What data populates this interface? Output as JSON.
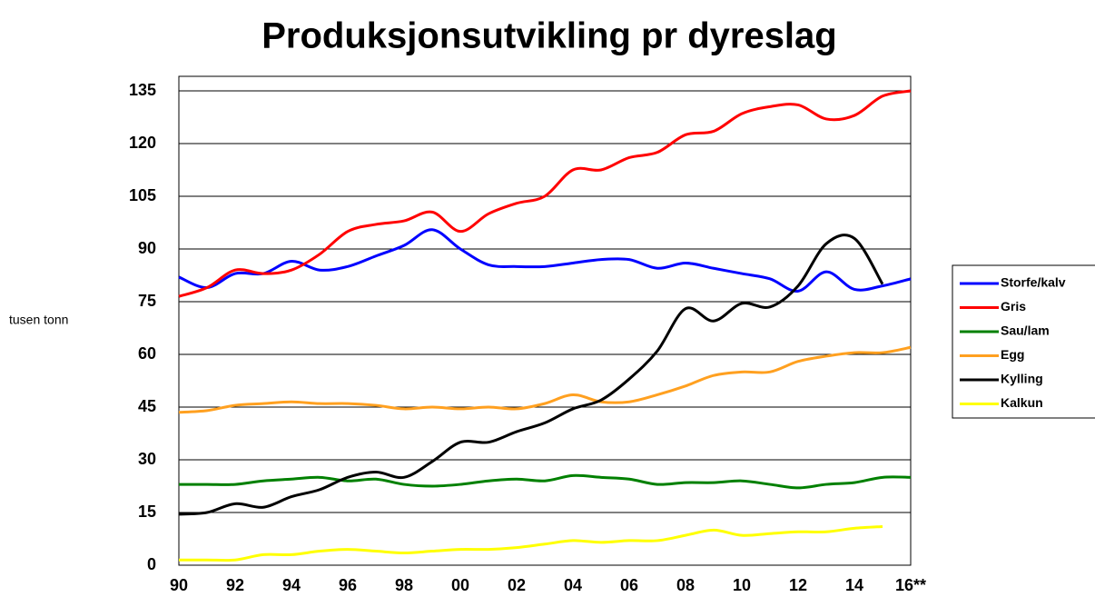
{
  "chart_data": {
    "type": "line",
    "title": "Produksjonsutvikling pr dyreslag",
    "y_label": "tusen tonn",
    "categories": [
      "90",
      null,
      "92",
      null,
      "94",
      null,
      "96",
      null,
      "98",
      null,
      "00",
      null,
      "02",
      null,
      "04",
      null,
      "06",
      null,
      "08",
      null,
      "10",
      null,
      "12",
      null,
      "14",
      null,
      "16**"
    ],
    "ylim": [
      0,
      135
    ],
    "yticks": [
      0,
      15,
      30,
      45,
      60,
      75,
      90,
      105,
      120,
      135
    ],
    "grid": true,
    "legend": "right",
    "series": [
      {
        "name": "Storfe/kalv",
        "color": "#0000ff",
        "values": [
          82,
          79,
          83,
          83,
          86.5,
          84,
          85,
          88,
          91,
          95.5,
          90,
          85.5,
          85,
          85,
          86,
          87,
          87,
          84.5,
          86,
          84.5,
          83,
          81.5,
          78,
          83.5,
          78.5,
          79.5,
          81.5
        ]
      },
      {
        "name": "Gris",
        "color": "#ff0000",
        "values": [
          76.5,
          79,
          84,
          83,
          84,
          88.5,
          95,
          97,
          98,
          100.5,
          95,
          100,
          103,
          105,
          112.5,
          112.5,
          116,
          117.5,
          122.5,
          123.5,
          128.5,
          130.5,
          131,
          127,
          128,
          133.5,
          135
        ]
      },
      {
        "name": "Sau/lam",
        "color": "#008000",
        "values": [
          23,
          23,
          23,
          24,
          24.5,
          25,
          24,
          24.5,
          23,
          22.5,
          23,
          24,
          24.5,
          24,
          25.5,
          25,
          24.5,
          23,
          23.5,
          23.5,
          24,
          23,
          22,
          23,
          23.5,
          25,
          25
        ]
      },
      {
        "name": "Egg",
        "color": "#ffa020",
        "values": [
          43.5,
          44,
          45.5,
          46,
          46.5,
          46,
          46,
          45.5,
          44.5,
          45,
          44.5,
          45,
          44.5,
          46,
          48.5,
          46.5,
          46.5,
          48.5,
          51,
          54,
          55,
          55,
          58,
          59.5,
          60.5,
          60.5,
          62
        ]
      },
      {
        "name": "Kylling",
        "color": "#000000",
        "values": [
          14.5,
          15,
          17.5,
          16.5,
          19.5,
          21.5,
          25,
          26.5,
          25,
          29.5,
          35,
          35,
          38,
          40.5,
          44.5,
          47,
          53,
          61,
          73,
          69.5,
          74.5,
          73.5,
          79.5,
          91.5,
          93,
          80,
          null
        ]
      },
      {
        "name": "Kalkun",
        "color": "#ffff00",
        "values": [
          1.5,
          1.5,
          1.5,
          3,
          3,
          4,
          4.5,
          4,
          3.5,
          4,
          4.5,
          4.5,
          5,
          6,
          7,
          6.5,
          7,
          7,
          8.5,
          10,
          8.5,
          9,
          9.5,
          9.5,
          10.5,
          11,
          null
        ]
      }
    ]
  }
}
